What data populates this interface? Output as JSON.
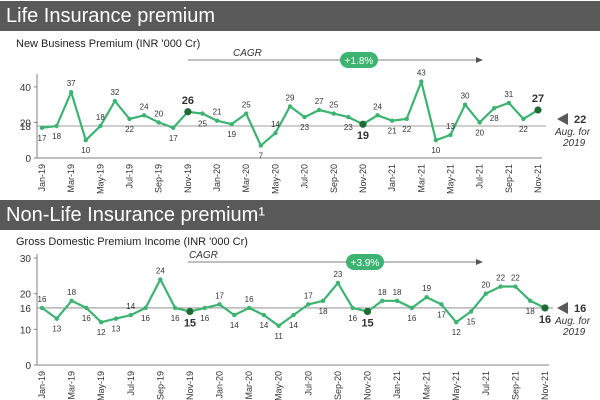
{
  "colors": {
    "banner": "#595959",
    "line": "#3cb371",
    "axis": "#808080",
    "reference": "#7f7f7f",
    "highlight": "#1e6b35",
    "cagr_badge": "#3cb371"
  },
  "life": {
    "banner_title": "Life Insurance premium",
    "subtitle": "New Business Premium  (INR '000 Cr)",
    "cagr_label": "CAGR",
    "cagr_value": "+1.8%",
    "avg_value": "22",
    "avg_caption_line1": "Aug. for",
    "avg_caption_line2": "2019",
    "avg_marker": "arrow-left-icon"
  },
  "nonlife": {
    "banner_title": "Non-Life Insurance premium¹",
    "subtitle": "Gross Domestic Premium Income (INR '000 Cr)",
    "cagr_label": "CAGR",
    "cagr_value": "+3.9%",
    "avg_value": "16",
    "avg_caption_line1": "Aug. for",
    "avg_caption_line2": "2019",
    "avg_marker": "arrow-left-icon"
  },
  "chart_data": [
    {
      "type": "line",
      "title": "New Business Premium (INR '000 Cr)",
      "xlabel": "",
      "ylabel": "",
      "ylim": [
        0,
        45
      ],
      "yticks": [
        0,
        20,
        40
      ],
      "reference_line": 18,
      "reference_tick_label": "18",
      "highlighted_points": [
        {
          "label": "Nov-19",
          "value": 26
        },
        {
          "label": "Nov-20",
          "value": 19
        },
        {
          "label": "Nov-21",
          "value": 27
        }
      ],
      "x": [
        "Jan-19",
        "Feb-19",
        "Mar-19",
        "Apr-19",
        "May-19",
        "Jun-19",
        "Jul-19",
        "Aug-19",
        "Sep-19",
        "Oct-19",
        "Nov-19",
        "Dec-19",
        "Jan-20",
        "Feb-20",
        "Mar-20",
        "Apr-20",
        "May-20",
        "Jun-20",
        "Jul-20",
        "Aug-20",
        "Sep-20",
        "Oct-20",
        "Nov-20",
        "Dec-20",
        "Jan-21",
        "Feb-21",
        "Mar-21",
        "Apr-21",
        "May-21",
        "Jun-21",
        "Jul-21",
        "Aug-21",
        "Sep-21",
        "Oct-21",
        "Nov-21"
      ],
      "x_tick_labels": [
        "Jan-19",
        "Mar-19",
        "May-19",
        "Jul-19",
        "Sep-19",
        "Nov-19",
        "Jan-20",
        "Mar-20",
        "May-20",
        "Jul-20",
        "Sep-20",
        "Nov-20",
        "Jan-21",
        "Mar-21",
        "May-21",
        "Jul-21",
        "Sep-21",
        "Nov-21"
      ],
      "series": [
        {
          "name": "New Business Premium",
          "values": [
            17,
            18,
            37,
            10,
            18,
            32,
            22,
            24,
            20,
            17,
            26,
            25,
            21,
            19,
            25,
            7,
            14,
            29,
            23,
            27,
            25,
            23,
            19,
            24,
            21,
            22,
            43,
            10,
            13,
            30,
            20,
            28,
            31,
            22,
            27
          ]
        }
      ]
    },
    {
      "type": "line",
      "title": "Gross Domestic Premium Income (INR '000 Cr)",
      "xlabel": "",
      "ylabel": "",
      "ylim": [
        0,
        30
      ],
      "yticks": [
        0,
        10,
        20,
        30
      ],
      "reference_line": 16,
      "reference_tick_label": "16",
      "highlighted_points": [
        {
          "label": "Nov-19",
          "value": 15
        },
        {
          "label": "Nov-20",
          "value": 15
        },
        {
          "label": "Nov-21",
          "value": 16
        }
      ],
      "x": [
        "Jan-19",
        "Feb-19",
        "Mar-19",
        "Apr-19",
        "May-19",
        "Jun-19",
        "Jul-19",
        "Aug-19",
        "Sep-19",
        "Oct-19",
        "Nov-19",
        "Dec-19",
        "Jan-20",
        "Feb-20",
        "Mar-20",
        "Apr-20",
        "May-20",
        "Jun-20",
        "Jul-20",
        "Aug-20",
        "Sep-20",
        "Oct-20",
        "Nov-20",
        "Dec-20",
        "Jan-21",
        "Feb-21",
        "Mar-21",
        "Apr-21",
        "May-21",
        "Jun-21",
        "Jul-21",
        "Aug-21",
        "Sep-21",
        "Oct-21",
        "Nov-21"
      ],
      "x_tick_labels": [
        "Jan-19",
        "Mar-19",
        "May-19",
        "Jul-19",
        "Sep-19",
        "Nov-19",
        "Jan-20",
        "Mar-20",
        "May-20",
        "Jul-20",
        "Sep-20",
        "Nov-20",
        "Jan-21",
        "Mar-21",
        "May-21",
        "Jul-21",
        "Sep-21",
        "Nov-21"
      ],
      "series": [
        {
          "name": "Gross Domestic Premium Income",
          "values": [
            16,
            13,
            18,
            16,
            12,
            13,
            14,
            16,
            24,
            16,
            15,
            16,
            17,
            14,
            16,
            14,
            11,
            14,
            17,
            18,
            23,
            16,
            15,
            18,
            18,
            16,
            19,
            17,
            12,
            15,
            20,
            22,
            22,
            18,
            16
          ]
        }
      ]
    }
  ]
}
